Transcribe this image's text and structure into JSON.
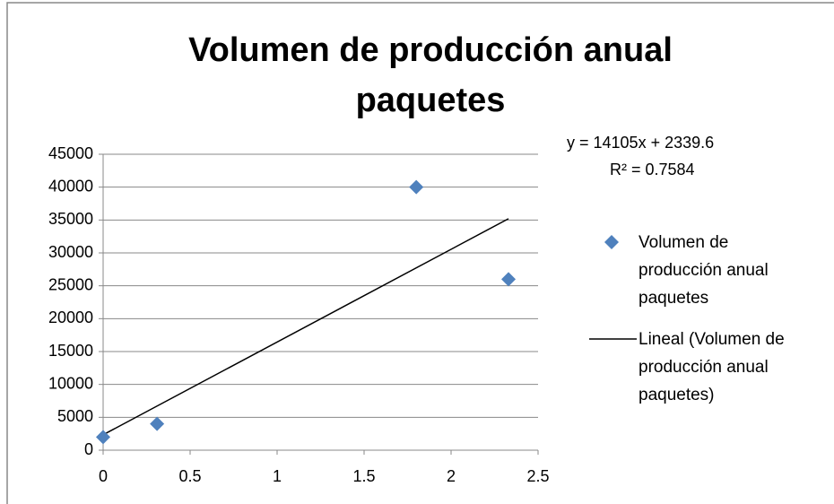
{
  "chart_data": {
    "type": "scatter",
    "title": "Volumen de producción anual paquetes",
    "series": [
      {
        "name": "Volumen de producción anual paquetes",
        "color": "#4f81bd",
        "x": [
          0,
          0.31,
          1.8,
          2.33
        ],
        "values": [
          2000,
          4000,
          40000,
          26000
        ]
      }
    ],
    "trendline": {
      "name": "Lineal (Volumen de producción anual paquetes)",
      "color": "#000000",
      "x": [
        0,
        2.33
      ],
      "values": [
        2340,
        35200
      ]
    },
    "annotations": [
      "y = 14105x + 2339.6",
      "R² = 0.7584"
    ],
    "xlim": [
      0,
      2.5
    ],
    "xticks": [
      0,
      0.5,
      1,
      1.5,
      2,
      2.5
    ],
    "ylim": [
      0,
      45000
    ],
    "yticks": [
      0,
      5000,
      10000,
      15000,
      20000,
      25000,
      30000,
      35000,
      40000,
      45000
    ],
    "grid": true,
    "legend": "right"
  }
}
